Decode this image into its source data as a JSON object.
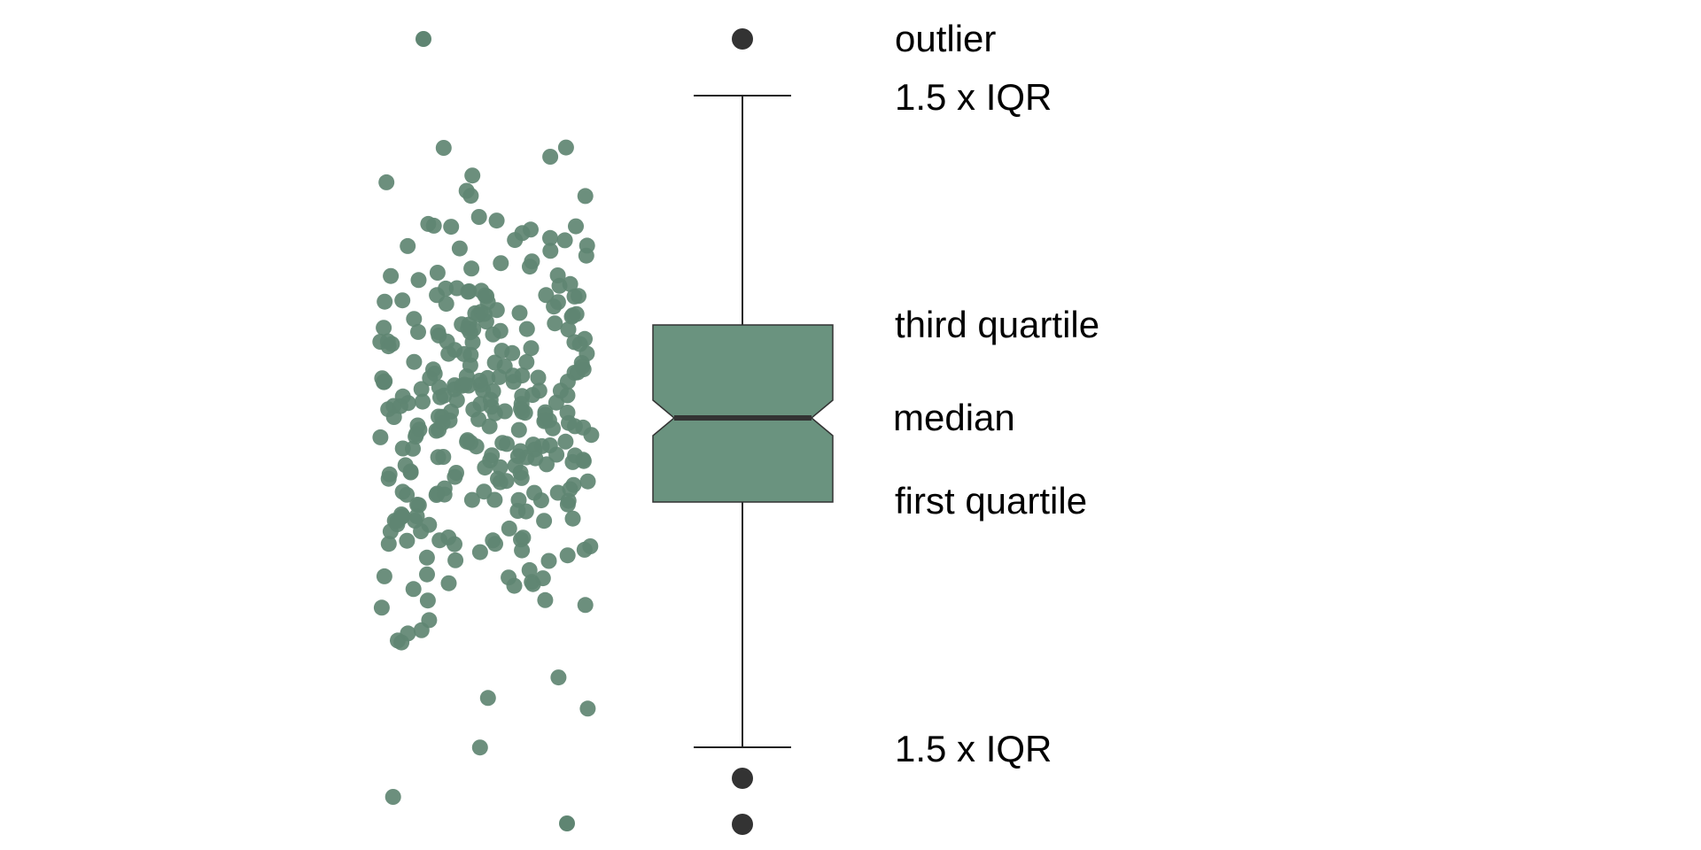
{
  "colors": {
    "jitter_points": "#5f8572",
    "box_fill": "#6a937f",
    "box_stroke": "#333333",
    "median_line": "#333333",
    "whisker": "#222222",
    "outlier": "#333333",
    "background": "#ffffff"
  },
  "annotations": {
    "outlier": "outlier",
    "upper_whisker": "1.5 x IQR",
    "third_quartile": "third quartile",
    "median": "median",
    "first_quartile": "first quartile",
    "lower_whisker": "1.5 x IQR"
  },
  "boxplot": {
    "notched": true,
    "outlier_count": 3,
    "jitter_point_count": 300
  }
}
